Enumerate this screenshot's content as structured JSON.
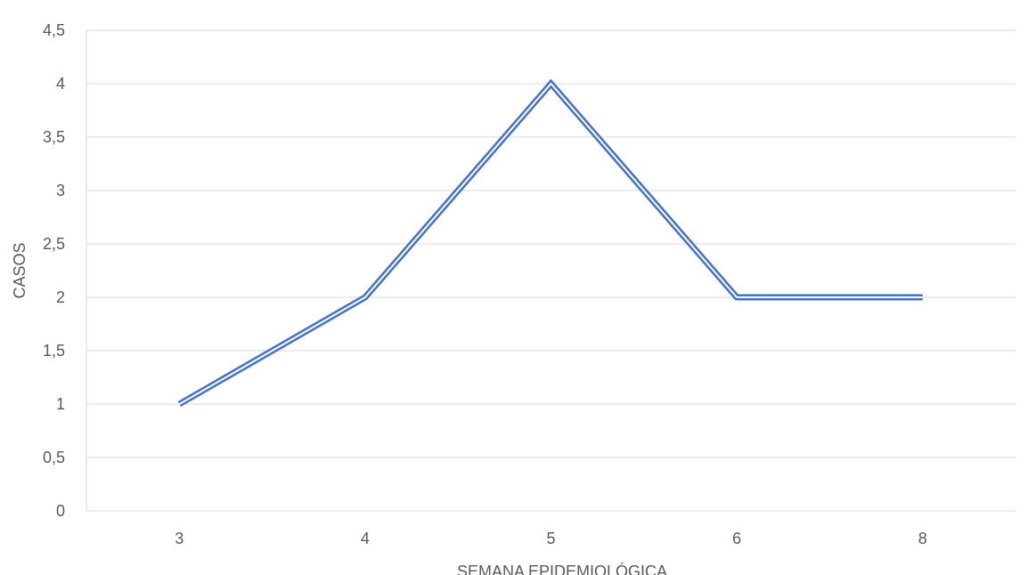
{
  "chart_data": {
    "type": "line",
    "title": "",
    "xlabel": "SEMANA EPIDEMIOLÓGICA",
    "ylabel": "CASOS",
    "categories": [
      "3",
      "4",
      "5",
      "6",
      "8"
    ],
    "series": [
      {
        "values": [
          1,
          2,
          4,
          2,
          2
        ]
      }
    ],
    "ylim": [
      0,
      4.5
    ],
    "yticks": [
      "0",
      "0,5",
      "1",
      "1,5",
      "2",
      "2,5",
      "3",
      "3,5",
      "4",
      "4,5"
    ],
    "grid": true,
    "legend": "none",
    "colors": {
      "line": "#4472C4",
      "grid": "#D9D9D9",
      "text": "#595959"
    }
  }
}
